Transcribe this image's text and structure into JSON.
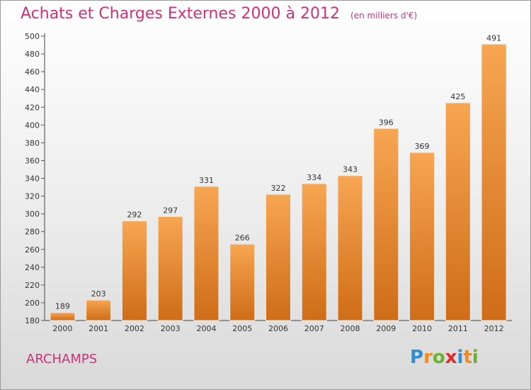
{
  "title": "Achats et Charges Externes 2000 à 2012",
  "unit": "(en milliers d'€)",
  "location": "ARCHAMPS",
  "logo": {
    "letters": [
      "P",
      "r",
      "o",
      "x",
      "i",
      "t",
      "i"
    ],
    "colors": [
      "#2c8fcf",
      "#f28a1e",
      "#6ab42d",
      "#e32a2a",
      "#2c8fcf",
      "#f28a1e",
      "#6ab42d"
    ]
  },
  "colors": {
    "bar_top": "#f7a652",
    "bar_bottom": "#cf6c18",
    "axis": "#444444",
    "grid_tick": "#555555",
    "title": "#d0307a"
  },
  "chart_data": {
    "type": "bar",
    "categories": [
      "2000",
      "2001",
      "2002",
      "2003",
      "2004",
      "2005",
      "2006",
      "2007",
      "2008",
      "2009",
      "2010",
      "2011",
      "2012"
    ],
    "values": [
      189,
      203,
      292,
      297,
      331,
      266,
      322,
      334,
      343,
      396,
      369,
      425,
      491
    ],
    "ylim": [
      180,
      500
    ],
    "yticks": [
      180,
      200,
      220,
      240,
      260,
      280,
      300,
      320,
      340,
      360,
      380,
      400,
      420,
      440,
      460,
      480,
      500
    ],
    "data_labels": [
      "189",
      "203",
      "292",
      "297",
      "331",
      "266",
      "322",
      "334",
      "343",
      "396",
      "369",
      "425",
      "491"
    ],
    "grid": false
  }
}
